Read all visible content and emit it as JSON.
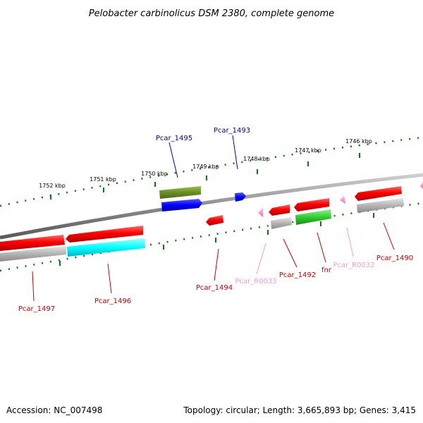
{
  "title": "Pelobacter carbinolicus DSM 2380, complete genome",
  "footer": {
    "accession": "Accession: NC_007498",
    "summary": "Topology: circular; Length: 3,665,893 bp; Genes: 3,415"
  },
  "colors": {
    "red_gene": "#ff0000",
    "grey_gene": "#b4b4b4",
    "cyan_gene": "#00ffff",
    "green_gene": "#33cc33",
    "olive_gene": "#6b8e23",
    "blue_gene": "#0000ff",
    "pink_gene": "#ff9ccc",
    "label_red": "#cc0000",
    "label_blue": "#000099",
    "label_pink": "#ff99cc",
    "tick_green": "#0a7a0a",
    "backbone": "#8c8c8c"
  },
  "ticks": [
    {
      "label": "1752 kbp"
    },
    {
      "label": "1751 kbp"
    },
    {
      "label": "1750 kbp"
    },
    {
      "label": "1749 kbp"
    },
    {
      "label": "1748 kbp"
    },
    {
      "label": "1747 kbp"
    },
    {
      "label": "1746 kbp"
    }
  ],
  "gene_labels": [
    {
      "text": "Pcar_1495",
      "color": "blue"
    },
    {
      "text": "Pcar_1493",
      "color": "blue"
    },
    {
      "text": "Pcar_1497",
      "color": "red"
    },
    {
      "text": "Pcar_1496",
      "color": "red"
    },
    {
      "text": "Pcar_1494",
      "color": "red"
    },
    {
      "text": "Pcar_R0033",
      "color": "pink"
    },
    {
      "text": "Pcar_1492",
      "color": "red"
    },
    {
      "text": "fnr",
      "color": "red"
    },
    {
      "text": "Pcar_R0032",
      "color": "pink"
    },
    {
      "text": "Pcar_1490",
      "color": "red"
    }
  ]
}
